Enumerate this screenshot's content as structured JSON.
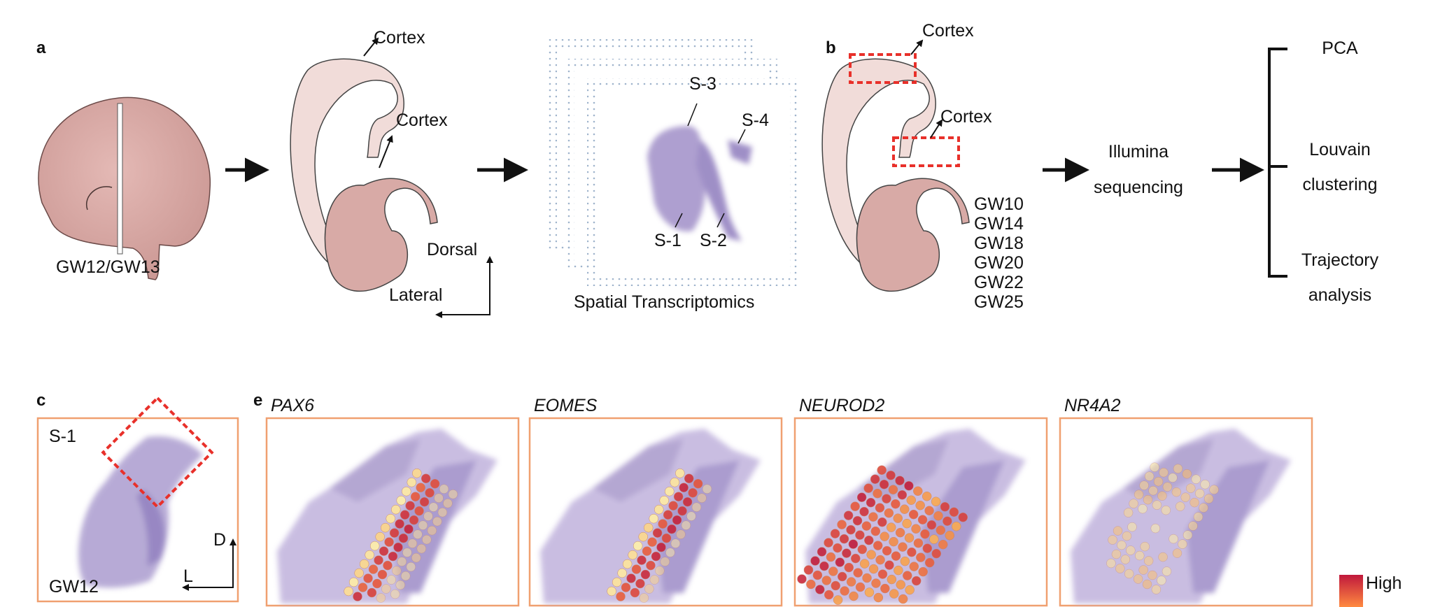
{
  "panel_a": {
    "letter": "a",
    "brain_label": "GW12/GW13",
    "cortex_top": "Cortex",
    "cortex_mid": "Cortex",
    "dorsal": "Dorsal",
    "lateral": "Lateral",
    "sections": [
      "S-1",
      "S-2",
      "S-3",
      "S-4"
    ],
    "spatial_label": "Spatial Transcriptomics"
  },
  "panel_b": {
    "letter": "b",
    "cortex_top": "Cortex",
    "cortex_mid": "Cortex",
    "ages": [
      "GW10",
      "GW14",
      "GW18",
      "GW20",
      "GW22",
      "GW25"
    ],
    "sequencing": [
      "Illumina",
      "sequencing"
    ],
    "analyses": [
      {
        "lines": [
          "PCA"
        ]
      },
      {
        "lines": [
          "Louvain",
          "clustering"
        ]
      },
      {
        "lines": [
          "Trajectory",
          "analysis"
        ]
      }
    ]
  },
  "panel_c": {
    "letter": "c",
    "section": "S-1",
    "age": "GW12",
    "d": "D",
    "l": "L"
  },
  "panel_e": {
    "letter": "e",
    "genes": [
      "PAX6",
      "EOMES",
      "NEUROD2",
      "NR4A2"
    ],
    "colorbar_label": "High"
  },
  "colors": {
    "frame": "#f0a070",
    "dashed_box": "#e8302a",
    "tissue": "#9a86c4",
    "brain": "#d9a9a6",
    "brain_light": "#f1dcd9",
    "high": "#c0183c",
    "low": "#ffe9a0"
  }
}
